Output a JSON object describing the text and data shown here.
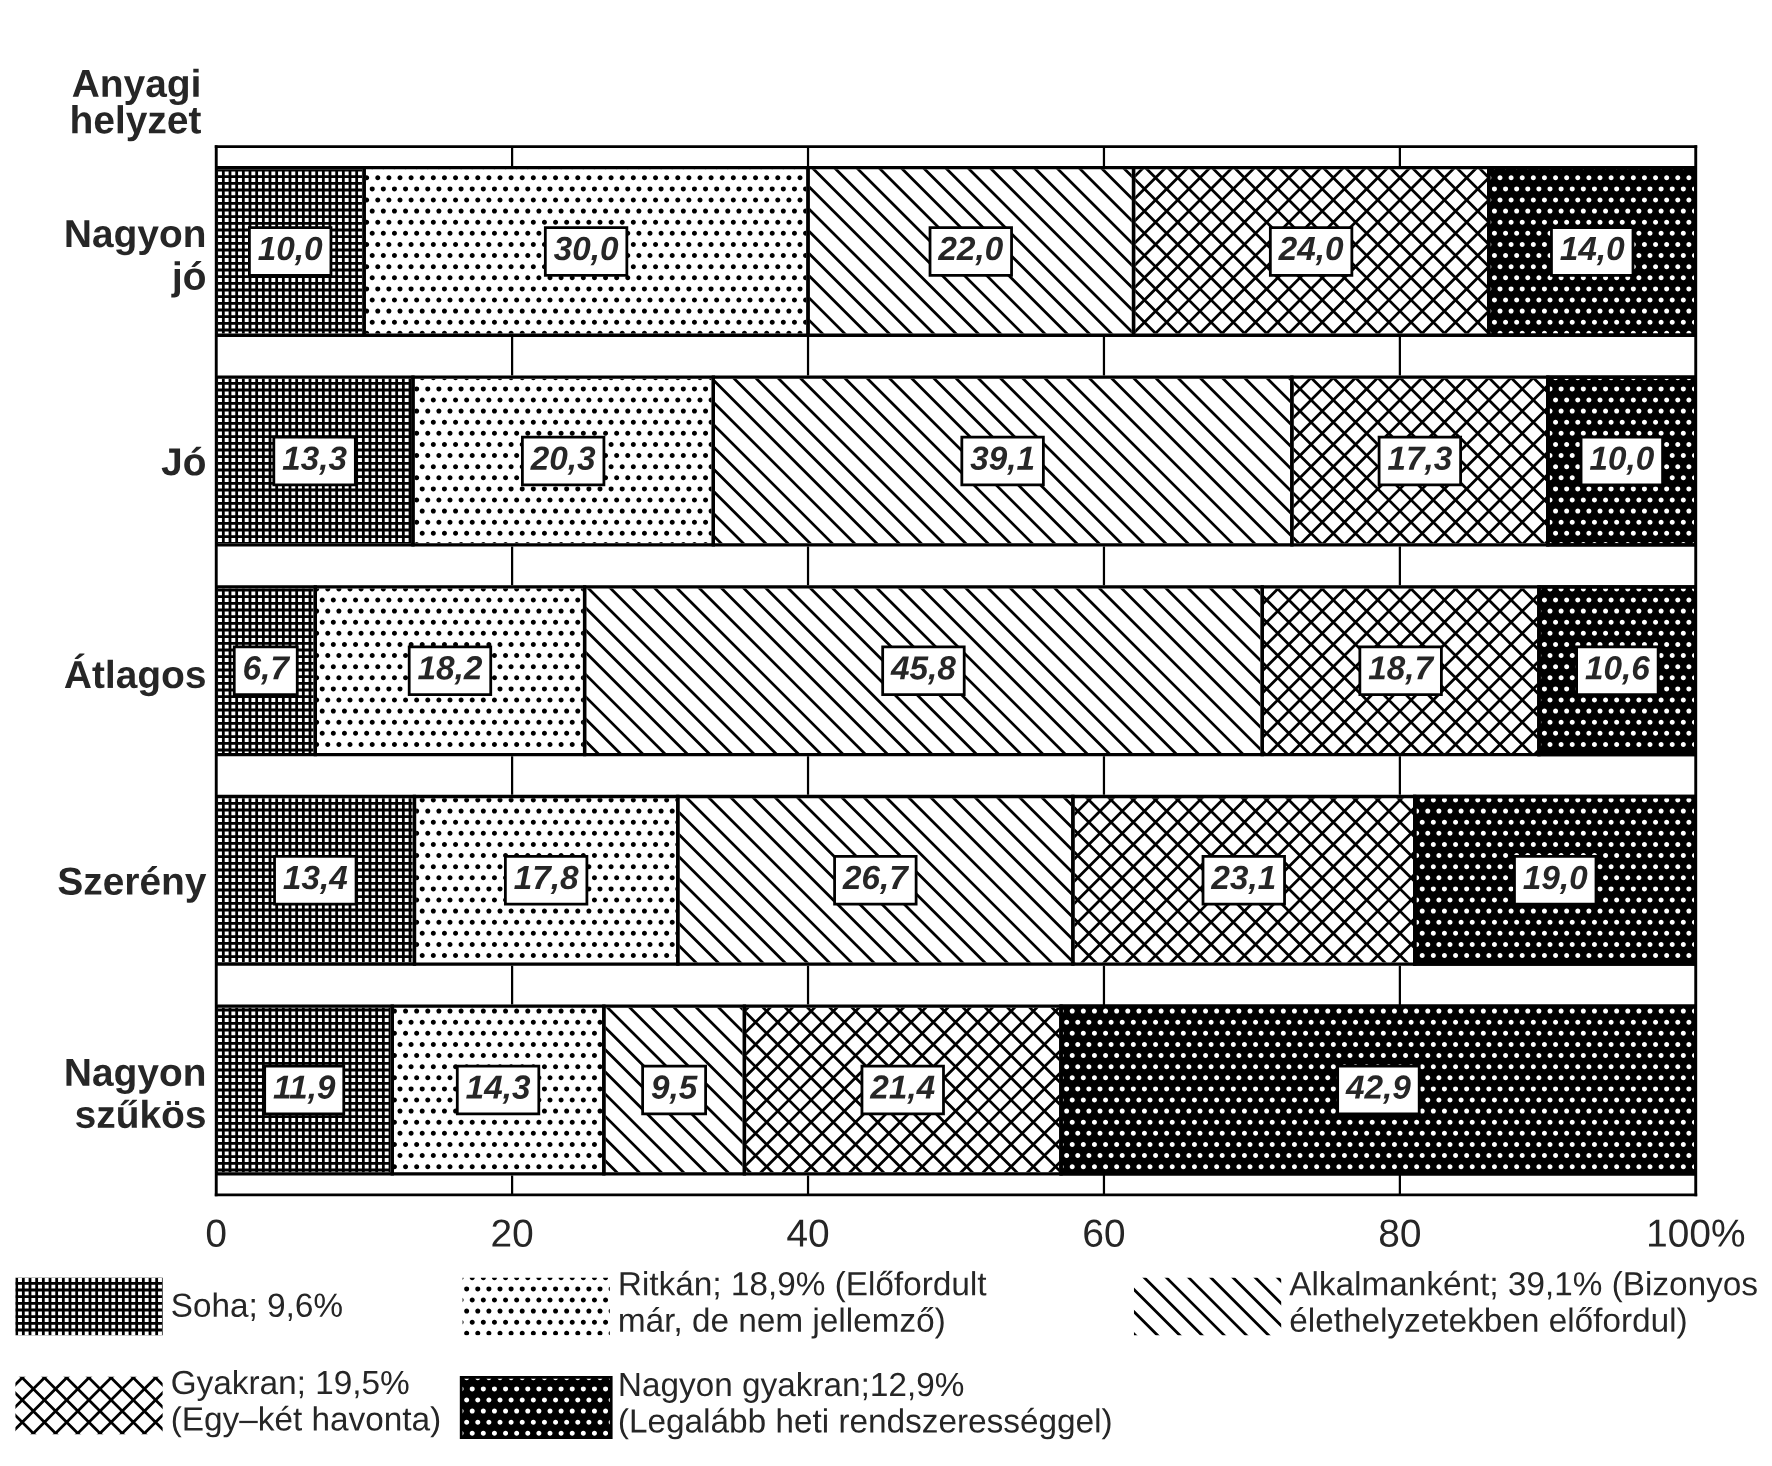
{
  "chart_data": {
    "type": "bar",
    "orientation": "horizontal",
    "stacked": true,
    "ylabel": "Anyagi\nhelyzet",
    "categories": [
      "Nagyon\njó",
      "Jó",
      "Átlagos",
      "Szerény",
      "Nagyon\nszűkös"
    ],
    "series": [
      {
        "name": "Soha; 9,6%",
        "color": "#ffffff",
        "values": [
          10.0,
          13.3,
          6.7,
          13.4,
          11.9
        ],
        "value_labels": [
          "10,0",
          "13,3",
          "6,7",
          "13,4",
          "11,9"
        ]
      },
      {
        "name": "Ritkán; 18,9% (Előfordult\nmár, de nem jellemző)",
        "color": "#ffffff",
        "values": [
          30.0,
          20.3,
          18.2,
          17.8,
          14.3
        ],
        "value_labels": [
          "30,0",
          "20,3",
          "18,2",
          "17,8",
          "14,3"
        ]
      },
      {
        "name": "Alkalmanként; 39,1% (Bizonyos\nélethelyzetekben előfordul)",
        "color": "#ffffff",
        "values": [
          22.0,
          39.1,
          45.8,
          26.7,
          9.5
        ],
        "value_labels": [
          "22,0",
          "39,1",
          "45,8",
          "26,7",
          "9,5"
        ]
      },
      {
        "name": "Gyakran; 19,5%\n(Egy–két havonta)",
        "color": "#ffffff",
        "values": [
          24.0,
          17.3,
          18.7,
          23.1,
          21.4
        ],
        "value_labels": [
          "24,0",
          "17,3",
          "18,7",
          "23,1",
          "21,4"
        ]
      },
      {
        "name": "Nagyon gyakran;12,9%\n(Legalább heti rendszerességgel)",
        "color": "#000000",
        "values": [
          14.0,
          10.0,
          10.6,
          19.0,
          42.9
        ],
        "value_labels": [
          "14,0",
          "10,0",
          "10,6",
          "19,0",
          "42,9"
        ]
      }
    ],
    "xlim": [
      0,
      100
    ],
    "xticks": [
      0,
      20,
      40,
      60,
      80,
      {
        "value": 100,
        "label": "100%"
      }
    ],
    "grid": "x",
    "legend": "bottom"
  }
}
